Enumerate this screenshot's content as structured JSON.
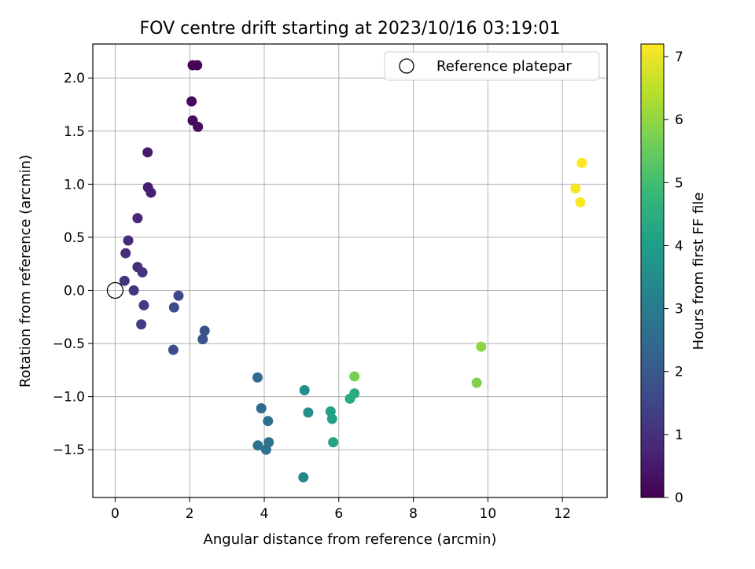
{
  "chart_data": {
    "type": "scatter",
    "title": "FOV centre drift starting at 2023/10/16 03:19:01",
    "xlabel": "Angular distance from reference (arcmin)",
    "ylabel": "Rotation from reference (arcmin)",
    "xlim": [
      -0.6,
      13.2
    ],
    "ylim": [
      -1.95,
      2.32
    ],
    "xticks": [
      0,
      2,
      4,
      6,
      8,
      10,
      12
    ],
    "yticks": [
      -1.5,
      -1.0,
      -0.5,
      0.0,
      0.5,
      1.0,
      1.5,
      2.0
    ],
    "xtick_labels": [
      "0",
      "2",
      "4",
      "6",
      "8",
      "10",
      "12"
    ],
    "ytick_labels": [
      "−1.5",
      "−1.0",
      "−0.5",
      "0.0",
      "0.5",
      "1.0",
      "1.5",
      "2.0"
    ],
    "grid": true,
    "legend": {
      "placement": "top-right",
      "entries": [
        {
          "label": "Reference platepar",
          "marker": "open-circle"
        }
      ]
    },
    "reference_point": {
      "x": 0.0,
      "y": 0.0
    },
    "colorbar": {
      "label": "Hours from first FF file",
      "colormap": "viridis",
      "range": [
        0,
        7.2
      ],
      "ticks": [
        0,
        1,
        2,
        3,
        4,
        5,
        6,
        7
      ],
      "tick_labels": [
        "0",
        "1",
        "2",
        "3",
        "4",
        "5",
        "6",
        "7"
      ]
    },
    "points": [
      {
        "x": 2.08,
        "y": 2.12,
        "hours": 0.05
      },
      {
        "x": 2.2,
        "y": 2.12,
        "hours": 0.1
      },
      {
        "x": 2.05,
        "y": 1.78,
        "hours": 0.15
      },
      {
        "x": 2.08,
        "y": 1.6,
        "hours": 0.2
      },
      {
        "x": 2.22,
        "y": 1.54,
        "hours": 0.3
      },
      {
        "x": 0.87,
        "y": 1.3,
        "hours": 0.55
      },
      {
        "x": 0.88,
        "y": 0.97,
        "hours": 0.6
      },
      {
        "x": 0.96,
        "y": 0.92,
        "hours": 0.65
      },
      {
        "x": 0.6,
        "y": 0.68,
        "hours": 0.8
      },
      {
        "x": 0.35,
        "y": 0.47,
        "hours": 0.85
      },
      {
        "x": 0.28,
        "y": 0.35,
        "hours": 0.9
      },
      {
        "x": 0.6,
        "y": 0.22,
        "hours": 0.95
      },
      {
        "x": 0.73,
        "y": 0.17,
        "hours": 1.0
      },
      {
        "x": 0.25,
        "y": 0.09,
        "hours": 1.05
      },
      {
        "x": 0.5,
        "y": 0.0,
        "hours": 1.15
      },
      {
        "x": 0.77,
        "y": -0.14,
        "hours": 1.25
      },
      {
        "x": 0.7,
        "y": -0.32,
        "hours": 1.3
      },
      {
        "x": 1.7,
        "y": -0.05,
        "hours": 1.55
      },
      {
        "x": 1.58,
        "y": -0.16,
        "hours": 1.6
      },
      {
        "x": 2.4,
        "y": -0.38,
        "hours": 1.75
      },
      {
        "x": 2.35,
        "y": -0.46,
        "hours": 1.8
      },
      {
        "x": 1.56,
        "y": -0.56,
        "hours": 1.65
      },
      {
        "x": 3.82,
        "y": -0.82,
        "hours": 2.5
      },
      {
        "x": 3.92,
        "y": -1.11,
        "hours": 2.55
      },
      {
        "x": 4.1,
        "y": -1.23,
        "hours": 2.6
      },
      {
        "x": 4.12,
        "y": -1.43,
        "hours": 2.65
      },
      {
        "x": 3.83,
        "y": -1.46,
        "hours": 2.7
      },
      {
        "x": 4.05,
        "y": -1.5,
        "hours": 2.75
      },
      {
        "x": 5.08,
        "y": -0.94,
        "hours": 3.5
      },
      {
        "x": 5.18,
        "y": -1.15,
        "hours": 3.6
      },
      {
        "x": 5.05,
        "y": -1.76,
        "hours": 3.3
      },
      {
        "x": 5.78,
        "y": -1.14,
        "hours": 4.05
      },
      {
        "x": 5.82,
        "y": -1.21,
        "hours": 4.1
      },
      {
        "x": 5.85,
        "y": -1.43,
        "hours": 4.15
      },
      {
        "x": 6.3,
        "y": -1.02,
        "hours": 4.35
      },
      {
        "x": 6.42,
        "y": -0.97,
        "hours": 4.45
      },
      {
        "x": 6.42,
        "y": -0.81,
        "hours": 5.7
      },
      {
        "x": 9.7,
        "y": -0.87,
        "hours": 5.8
      },
      {
        "x": 9.82,
        "y": -0.53,
        "hours": 5.95
      },
      {
        "x": 12.35,
        "y": 0.96,
        "hours": 7.1
      },
      {
        "x": 12.48,
        "y": 0.83,
        "hours": 7.15
      },
      {
        "x": 12.52,
        "y": 1.2,
        "hours": 7.2
      }
    ]
  }
}
